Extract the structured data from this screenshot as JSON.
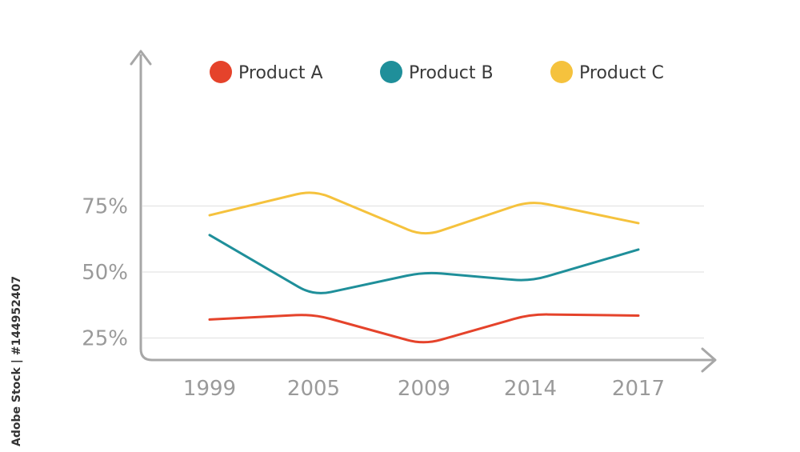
{
  "chart_data": {
    "type": "line",
    "categories": [
      "1999",
      "2005",
      "2009",
      "2014",
      "2017"
    ],
    "series": [
      {
        "name": "Product A",
        "color": "#e5432b",
        "values": [
          32,
          34,
          22.5,
          34,
          33.5
        ]
      },
      {
        "name": "Product B",
        "color": "#1f8f9a",
        "values": [
          64,
          41,
          50,
          46.5,
          58.5
        ]
      },
      {
        "name": "Product C",
        "color": "#f5c23d",
        "values": [
          71.5,
          81,
          63.5,
          77,
          68.5
        ]
      }
    ],
    "yticks": [
      {
        "value": 25,
        "label": "25%"
      },
      {
        "value": 50,
        "label": "50%"
      },
      {
        "value": 75,
        "label": "75%"
      }
    ],
    "ylim": [
      0,
      100
    ],
    "grid": true,
    "legend_position": "top"
  },
  "watermark": "Adobe Stock | #144952407"
}
